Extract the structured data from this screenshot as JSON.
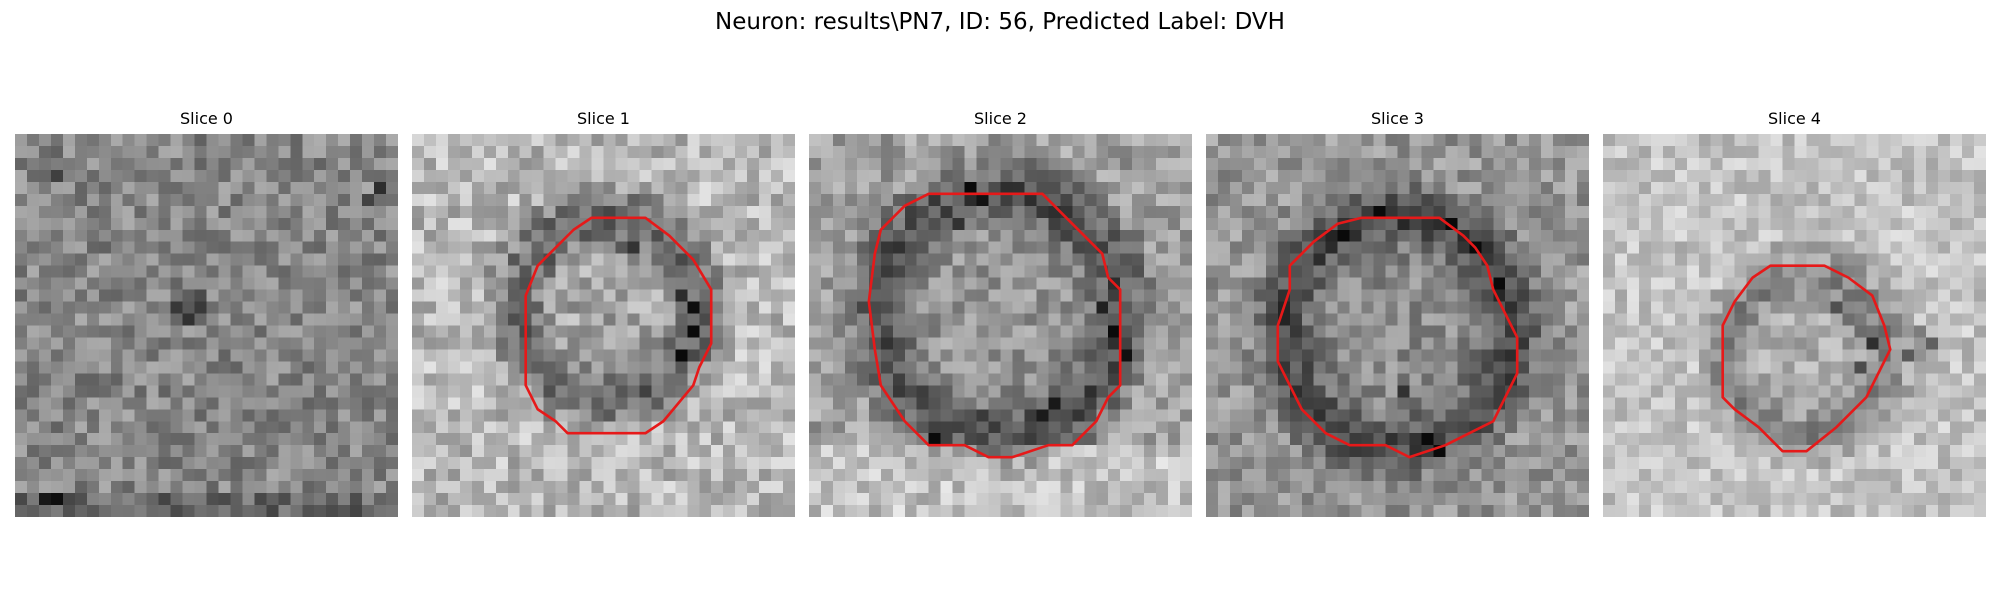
{
  "figure": {
    "title": "Neuron: results\\PN7, ID: 56, Predicted Label: DVH",
    "outline_color": "#e61919",
    "panels": [
      {
        "title": "Slice 0",
        "base_gray": 135,
        "noise": 38,
        "texture": "uniform-noise",
        "contour": false
      },
      {
        "title": "Slice 1",
        "base_gray": 165,
        "noise": 42,
        "texture": "dark-ring",
        "contour": true
      },
      {
        "title": "Slice 2",
        "base_gray": 150,
        "noise": 38,
        "texture": "dark-ring-large",
        "contour": true
      },
      {
        "title": "Slice 3",
        "base_gray": 140,
        "noise": 36,
        "texture": "dark-ring",
        "contour": true
      },
      {
        "title": "Slice 4",
        "base_gray": 175,
        "noise": 32,
        "texture": "faint-ring",
        "contour": true
      }
    ]
  }
}
